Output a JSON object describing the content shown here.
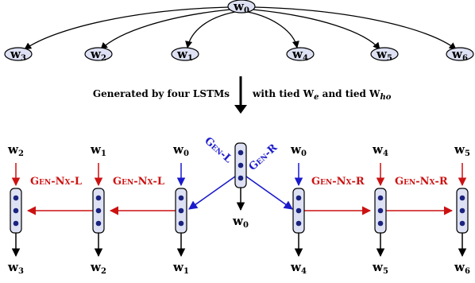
{
  "tree": {
    "root": {
      "base": "w",
      "sub": "0"
    },
    "children": [
      {
        "base": "w",
        "sub": "3"
      },
      {
        "base": "w",
        "sub": "2"
      },
      {
        "base": "w",
        "sub": "1"
      },
      {
        "base": "w",
        "sub": "4"
      },
      {
        "base": "w",
        "sub": "5"
      },
      {
        "base": "w",
        "sub": "6"
      }
    ]
  },
  "caption": {
    "left": "Generated by four LSTMs",
    "right_prefix": "with tied W",
    "right_sub1": "e",
    "right_middle": " and tied W",
    "right_sub2": "ho"
  },
  "labels": {
    "gen_l": "Gen-L",
    "gen_r": "Gen-R",
    "gen_nx_l": "Gen-Nx-L",
    "gen_nx_r": "Gen-Nx-R"
  },
  "lstm": {
    "inputs": [
      {
        "base": "w",
        "sub": "2"
      },
      {
        "base": "w",
        "sub": "1"
      },
      {
        "base": "w",
        "sub": "0"
      },
      {
        "base": "w",
        "sub": "0"
      },
      {
        "base": "w",
        "sub": "4"
      },
      {
        "base": "w",
        "sub": "5"
      }
    ],
    "outputs": [
      {
        "base": "w",
        "sub": "3"
      },
      {
        "base": "w",
        "sub": "2"
      },
      {
        "base": "w",
        "sub": "1"
      },
      {
        "base": "w",
        "sub": "0"
      },
      {
        "base": "w",
        "sub": "4"
      },
      {
        "base": "w",
        "sub": "5"
      },
      {
        "base": "w",
        "sub": "6"
      }
    ]
  },
  "colors": {
    "node_fill": "#dde1f3",
    "dot": "#1a237e",
    "red": "#cc1111",
    "blue": "#1a1acc",
    "black": "#000000"
  }
}
